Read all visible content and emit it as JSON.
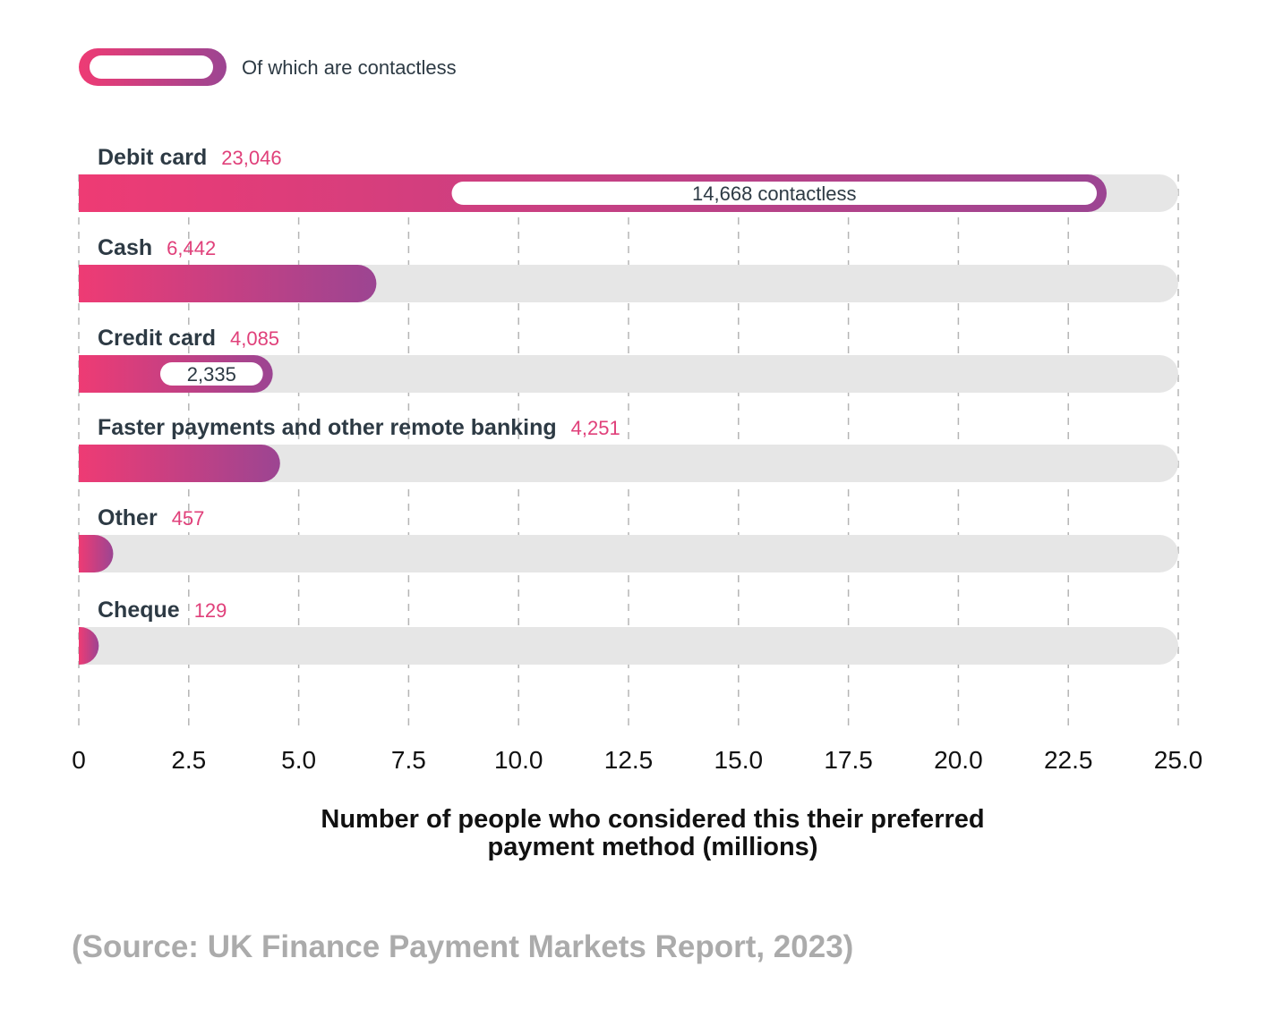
{
  "chart_data": {
    "type": "bar",
    "orientation": "horizontal",
    "categories": [
      "Debit card",
      "Cash",
      "Credit card",
      "Faster payments and other remote banking",
      "Other",
      "Cheque"
    ],
    "value_labels": [
      "23,046",
      "6,442",
      "4,085",
      "4,251",
      "457",
      "129"
    ],
    "values": [
      23.046,
      6.442,
      4.085,
      4.251,
      0.457,
      0.129
    ],
    "series": [
      {
        "name": "Of which are contactless",
        "values": [
          14.668,
          null,
          2.335,
          null,
          null,
          null
        ],
        "labels": [
          "14,668 contactless",
          null,
          "2,335",
          null,
          null,
          null
        ]
      }
    ],
    "xlabel": "Number of people who considered this their preferred payment method (millions)",
    "xlabel_lines": [
      "Number of people who considered this their preferred",
      "payment method (millions)"
    ],
    "xlim": [
      0,
      25
    ],
    "xticks": [
      "0",
      "2.5",
      "5.0",
      "7.5",
      "10.0",
      "12.5",
      "15.0",
      "17.5",
      "20.0",
      "22.5",
      "25.0"
    ],
    "grid": "vertical dashed",
    "legend": {
      "label": "Of which are contactless",
      "position": "top-left"
    },
    "source": "(Source: UK Finance Payment Markets Report, 2023)",
    "colors": {
      "gradient_start": "#ee3b74",
      "gradient_end": "#9c4592",
      "track": "#e6e6e6",
      "value_label": "#e0407a",
      "category_label": "#2d3a44",
      "source": "#ababab"
    }
  }
}
